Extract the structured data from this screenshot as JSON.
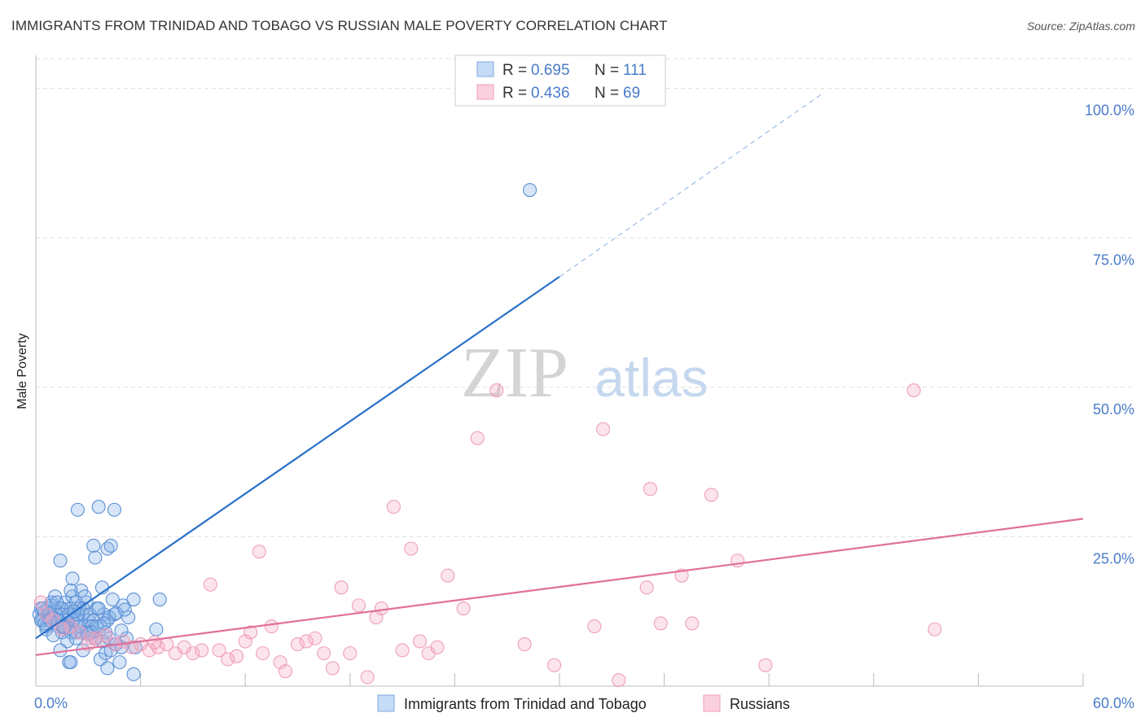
{
  "title": "IMMIGRANTS FROM TRINIDAD AND TOBAGO VS RUSSIAN MALE POVERTY CORRELATION CHART",
  "source": "Source: ZipAtlas.com",
  "watermark": {
    "left": "ZIP",
    "right": "atlas"
  },
  "colors": {
    "blue": "#5b9bd5",
    "blue_line": "#2970c9",
    "pink": "#f4a6bf",
    "pink_line": "#e0709a",
    "axis_text": "#4a7cc9",
    "grid": "#dddddd"
  },
  "chart_data": {
    "type": "scatter",
    "title": "IMMIGRANTS FROM TRINIDAD AND TOBAGO VS RUSSIAN MALE POVERTY CORRELATION CHART",
    "xlabel": "",
    "ylabel": "Male Poverty",
    "xlim": [
      0,
      60
    ],
    "ylim": [
      0,
      105
    ],
    "x_tick_labels": [
      "0.0%",
      "60.0%"
    ],
    "y_ticks": [
      25,
      50,
      75,
      100
    ],
    "y_tick_labels": [
      "25.0%",
      "50.0%",
      "75.0%",
      "100.0%"
    ],
    "grid": true,
    "legend_position": "top-center",
    "legend": [
      {
        "r_label": "R = ",
        "r_value": "0.695",
        "n_label": "N = ",
        "n_value": "111"
      },
      {
        "r_label": "R = ",
        "r_value": "0.436",
        "n_label": "N = ",
        "n_value": "69"
      }
    ],
    "series": [
      {
        "name": "Immigrants from Trinidad and Tobago",
        "color": "#5b9bd5",
        "trend": {
          "x0": 0,
          "y0": 8,
          "x1": 30,
          "y1": 68.5,
          "dash_x1": 45,
          "dash_y1": 99
        },
        "points": [
          [
            0.2,
            12
          ],
          [
            0.3,
            13
          ],
          [
            0.4,
            11
          ],
          [
            0.5,
            12.5
          ],
          [
            0.6,
            10
          ],
          [
            0.7,
            13
          ],
          [
            0.8,
            12
          ],
          [
            0.9,
            14
          ],
          [
            1.0,
            11
          ],
          [
            1.1,
            15
          ],
          [
            1.2,
            12
          ],
          [
            1.3,
            10
          ],
          [
            1.4,
            13
          ],
          [
            1.5,
            9
          ],
          [
            1.6,
            12
          ],
          [
            1.7,
            14
          ],
          [
            1.8,
            11
          ],
          [
            1.9,
            10
          ],
          [
            2.0,
            13
          ],
          [
            2.1,
            15
          ],
          [
            2.2,
            12
          ],
          [
            2.3,
            9
          ],
          [
            2.4,
            11
          ],
          [
            2.5,
            13
          ],
          [
            2.6,
            16
          ],
          [
            2.7,
            12
          ],
          [
            2.8,
            10
          ],
          [
            2.9,
            14
          ],
          [
            3.0,
            11
          ],
          [
            3.1,
            9
          ],
          [
            0.3,
            11
          ],
          [
            0.5,
            10.5
          ],
          [
            0.7,
            12
          ],
          [
            0.9,
            13.5
          ],
          [
            1.1,
            12.5
          ],
          [
            1.3,
            11
          ],
          [
            1.5,
            13
          ],
          [
            1.7,
            10
          ],
          [
            1.9,
            12
          ],
          [
            2.1,
            11
          ],
          [
            2.3,
            14
          ],
          [
            2.5,
            10
          ],
          [
            2.7,
            13
          ],
          [
            2.9,
            9
          ],
          [
            3.1,
            12
          ],
          [
            3.3,
            11
          ],
          [
            3.5,
            13
          ],
          [
            3.7,
            10
          ],
          [
            3.9,
            12
          ],
          [
            4.1,
            11
          ],
          [
            0.4,
            13
          ],
          [
            0.8,
            11
          ],
          [
            1.2,
            14
          ],
          [
            1.6,
            10
          ],
          [
            2.0,
            9
          ],
          [
            2.4,
            12
          ],
          [
            2.8,
            15
          ],
          [
            3.2,
            10
          ],
          [
            3.6,
            13
          ],
          [
            4.0,
            9
          ],
          [
            1.4,
            21
          ],
          [
            2.1,
            18
          ],
          [
            2.0,
            16
          ],
          [
            1.8,
            7.5
          ],
          [
            1.4,
            6
          ],
          [
            2.2,
            12.5
          ],
          [
            2.7,
            6
          ],
          [
            3.8,
            7.5
          ],
          [
            4.2,
            8
          ],
          [
            4.5,
            12
          ],
          [
            3.7,
            4.5
          ],
          [
            4.0,
            5.5
          ],
          [
            4.3,
            6
          ],
          [
            4.6,
            7
          ],
          [
            4.9,
            6.5
          ],
          [
            3.4,
            8
          ],
          [
            3.2,
            9
          ],
          [
            3.5,
            10
          ],
          [
            1.9,
            4
          ],
          [
            2.0,
            4
          ],
          [
            3.3,
            23.5
          ],
          [
            3.4,
            21.5
          ],
          [
            2.4,
            29.5
          ],
          [
            3.6,
            30
          ],
          [
            4.5,
            29.5
          ],
          [
            4.1,
            23
          ],
          [
            4.3,
            23.5
          ],
          [
            3.8,
            16.5
          ],
          [
            4.2,
            11.5
          ],
          [
            4.4,
            14.5
          ],
          [
            5.0,
            13.5
          ],
          [
            5.3,
            11.5
          ],
          [
            5.6,
            14.5
          ],
          [
            7.1,
            14.5
          ],
          [
            6.9,
            9.5
          ],
          [
            5.7,
            6.5
          ],
          [
            5.2,
            8
          ],
          [
            4.1,
            3
          ],
          [
            4.8,
            4
          ],
          [
            5.6,
            2
          ],
          [
            28.3,
            83
          ],
          [
            0.6,
            9.5
          ],
          [
            1.0,
            8.5
          ],
          [
            1.6,
            9.8
          ],
          [
            2.3,
            8
          ],
          [
            2.6,
            9
          ],
          [
            3.0,
            8.7
          ],
          [
            3.9,
            10.5
          ],
          [
            4.6,
            12.2
          ],
          [
            4.9,
            9.3
          ],
          [
            5.1,
            12.8
          ]
        ]
      },
      {
        "name": "Russians",
        "color": "#f4a6bf",
        "trend": {
          "x0": 0,
          "y0": 5.2,
          "x1": 60,
          "y1": 28
        },
        "points": [
          [
            0.3,
            14
          ],
          [
            0.6,
            12
          ],
          [
            1.0,
            11
          ],
          [
            1.5,
            9.5
          ],
          [
            2.0,
            10
          ],
          [
            2.5,
            9
          ],
          [
            3.0,
            7
          ],
          [
            3.5,
            8
          ],
          [
            4.0,
            8.5
          ],
          [
            4.5,
            7
          ],
          [
            5.0,
            7.5
          ],
          [
            5.5,
            6.5
          ],
          [
            6.0,
            7
          ],
          [
            6.5,
            6
          ],
          [
            7.0,
            6.5
          ],
          [
            7.5,
            7
          ],
          [
            8.0,
            5.5
          ],
          [
            8.5,
            6.5
          ],
          [
            9.0,
            5.5
          ],
          [
            9.5,
            6
          ],
          [
            10.0,
            17
          ],
          [
            10.5,
            6
          ],
          [
            11.0,
            4.5
          ],
          [
            11.5,
            5
          ],
          [
            12.0,
            7.5
          ],
          [
            12.3,
            9
          ],
          [
            12.8,
            22.5
          ],
          [
            13.0,
            5.5
          ],
          [
            13.5,
            10
          ],
          [
            14.0,
            4
          ],
          [
            14.3,
            2.5
          ],
          [
            15.0,
            7
          ],
          [
            15.5,
            7.5
          ],
          [
            16.0,
            8
          ],
          [
            16.5,
            5.5
          ],
          [
            17.0,
            3
          ],
          [
            17.5,
            16.5
          ],
          [
            18.0,
            5.5
          ],
          [
            18.5,
            13.5
          ],
          [
            19.0,
            1.5
          ],
          [
            19.5,
            11.5
          ],
          [
            19.8,
            13
          ],
          [
            20.5,
            30
          ],
          [
            21.0,
            6
          ],
          [
            21.5,
            23
          ],
          [
            22.0,
            7.5
          ],
          [
            22.5,
            5.5
          ],
          [
            23.0,
            6.5
          ],
          [
            23.6,
            18.5
          ],
          [
            24.5,
            13
          ],
          [
            25.3,
            41.5
          ],
          [
            26.4,
            49.5
          ],
          [
            28.0,
            7
          ],
          [
            29.7,
            3.5
          ],
          [
            32.0,
            10
          ],
          [
            32.5,
            43
          ],
          [
            33.4,
            1
          ],
          [
            35.0,
            16.5
          ],
          [
            35.2,
            33
          ],
          [
            35.8,
            10.5
          ],
          [
            37.0,
            18.5
          ],
          [
            37.6,
            10.5
          ],
          [
            38.7,
            32
          ],
          [
            40.2,
            21
          ],
          [
            41.8,
            3.5
          ],
          [
            50.3,
            49.5
          ],
          [
            51.5,
            9.5
          ],
          [
            3.2,
            8
          ],
          [
            6.8,
            7.3
          ]
        ]
      }
    ]
  },
  "bottom_legend": [
    "Immigrants from Trinidad and Tobago",
    "Russians"
  ]
}
